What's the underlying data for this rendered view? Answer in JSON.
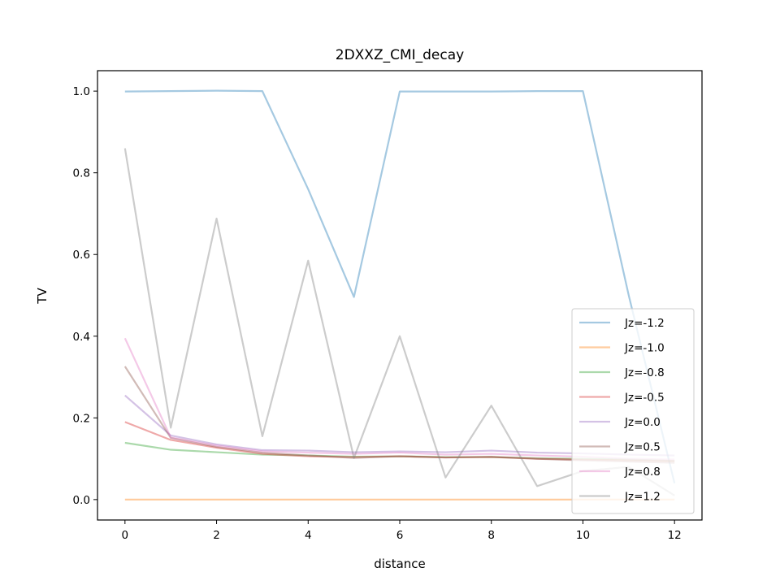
{
  "chart_data": {
    "type": "line",
    "title": "2DXXZ_CMI_decay",
    "xlabel": "distance",
    "ylabel": "TV",
    "xlim": [
      -0.6,
      12.6
    ],
    "ylim": [
      -0.05,
      1.05
    ],
    "xticks": [
      0,
      2,
      4,
      6,
      8,
      10,
      12
    ],
    "yticks": [
      0.0,
      0.2,
      0.4,
      0.6,
      0.8,
      1.0
    ],
    "xtick_labels": [
      "0",
      "2",
      "4",
      "6",
      "8",
      "10",
      "12"
    ],
    "ytick_labels": [
      "0.0",
      "0.2",
      "0.4",
      "0.6",
      "0.8",
      "1.0"
    ],
    "grid": false,
    "legend_position": "lower-right",
    "x": [
      0,
      1,
      2,
      3,
      4,
      5,
      6,
      7,
      8,
      9,
      10,
      11,
      12
    ],
    "series": [
      {
        "name": "Jz=-1.2",
        "color": "#1f77b4",
        "values": [
          0.999,
          1.0,
          1.001,
          1.0,
          0.76,
          0.496,
          0.999,
          0.999,
          0.999,
          1.0,
          1.0,
          0.5,
          0.04
        ]
      },
      {
        "name": "Jz=-1.0",
        "color": "#ff7f0e",
        "values": [
          0.0,
          0.0,
          0.0,
          0.0,
          0.0,
          0.0,
          0.0,
          0.0,
          0.0,
          0.0,
          0.0,
          0.0,
          0.0
        ]
      },
      {
        "name": "Jz=-0.8",
        "color": "#2ca02c",
        "values": [
          0.139,
          0.122,
          0.116,
          0.11,
          0.108,
          0.105,
          0.106,
          0.104,
          0.104,
          0.101,
          0.1,
          0.098,
          0.095
        ]
      },
      {
        "name": "Jz=-0.5",
        "color": "#d62728",
        "values": [
          0.19,
          0.146,
          0.127,
          0.112,
          0.106,
          0.104,
          0.106,
          0.103,
          0.104,
          0.1,
          0.098,
          0.096,
          0.094
        ]
      },
      {
        "name": "Jz=0.0",
        "color": "#9467bd",
        "values": [
          0.255,
          0.157,
          0.135,
          0.121,
          0.12,
          0.116,
          0.118,
          0.116,
          0.12,
          0.115,
          0.113,
          0.11,
          0.108
        ]
      },
      {
        "name": "Jz=0.5",
        "color": "#8c564b",
        "values": [
          0.326,
          0.151,
          0.129,
          0.115,
          0.108,
          0.102,
          0.106,
          0.103,
          0.105,
          0.1,
          0.096,
          0.093,
          0.09
        ]
      },
      {
        "name": "Jz=0.8",
        "color": "#e377c2",
        "values": [
          0.395,
          0.152,
          0.132,
          0.118,
          0.115,
          0.112,
          0.115,
          0.11,
          0.112,
          0.108,
          0.105,
          0.1,
          0.098
        ]
      },
      {
        "name": "Jz=1.2",
        "color": "#7f7f7f",
        "values": [
          0.86,
          0.176,
          0.688,
          0.155,
          0.585,
          0.102,
          0.4,
          0.054,
          0.23,
          0.033,
          0.07,
          0.08,
          0.01
        ]
      }
    ]
  }
}
